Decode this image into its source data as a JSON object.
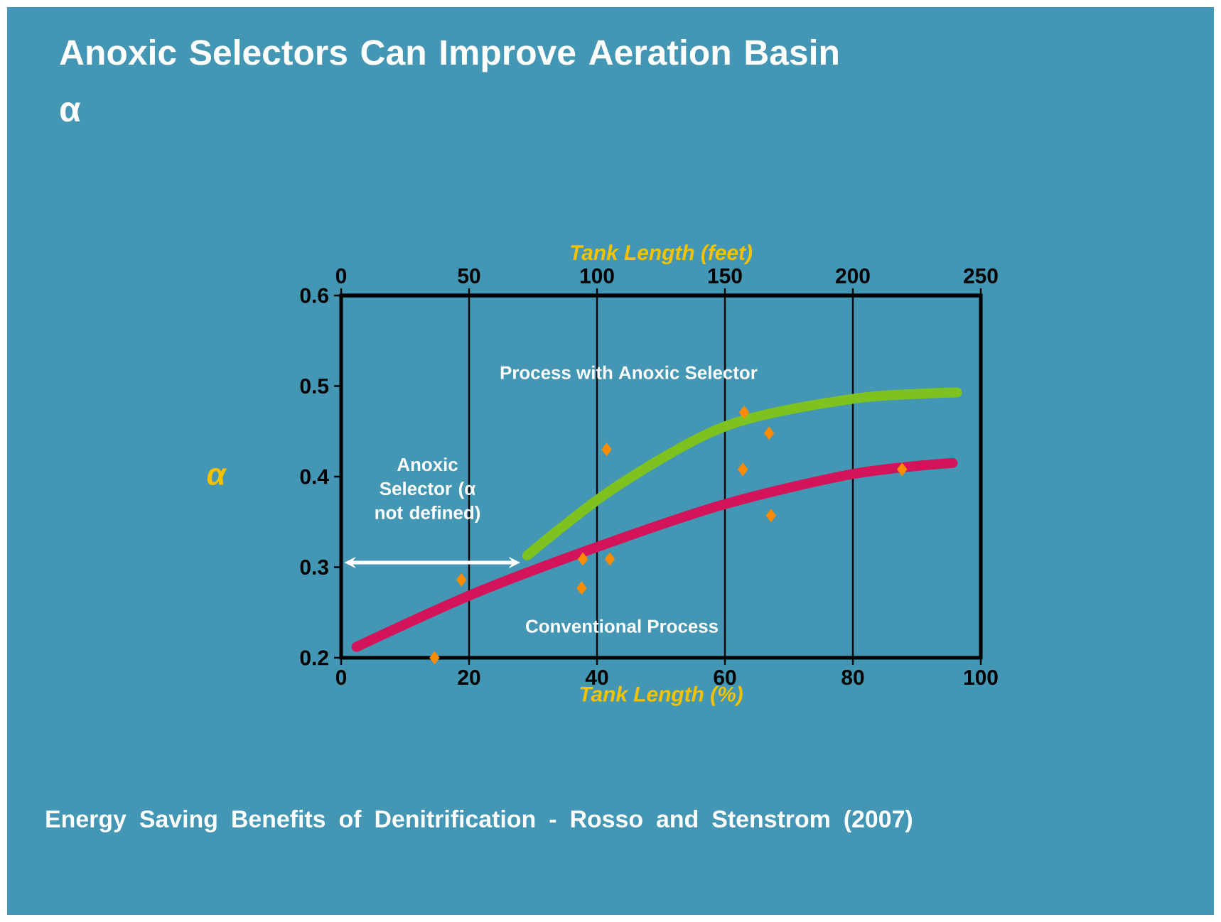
{
  "chart_data": {
    "type": "line",
    "title": "Anoxic Selectors Can Improve Aeration Basin α",
    "xlabel": "Tank Length  (%)",
    "x2label": "Tank Length  (feet)",
    "ylabel": "α",
    "xlim": [
      0,
      100
    ],
    "xticks": [
      0,
      20,
      40,
      60,
      80,
      100
    ],
    "x2lim": [
      0,
      250
    ],
    "x2ticks": [
      0,
      50,
      100,
      150,
      200,
      250
    ],
    "ylim": [
      0.2,
      0.6
    ],
    "yticks": [
      0.2,
      0.3,
      0.4,
      0.5,
      0.6
    ],
    "grid": "x",
    "series": [
      {
        "name": "Process with Anoxic Selector",
        "color": "#7dc21e",
        "x": [
          29.1,
          42.6,
          60.2,
          80.1,
          96.3
        ],
        "values": [
          0.313,
          0.387,
          0.456,
          0.486,
          0.493
        ]
      },
      {
        "name": "Conventional Process",
        "color": "#d4145a",
        "x": [
          2.4,
          20.5,
          40.3,
          60.2,
          80.1,
          95.6
        ],
        "values": [
          0.212,
          0.27,
          0.323,
          0.37,
          0.403,
          0.415
        ]
      },
      {
        "type": "scatter",
        "marker": "diamond",
        "color": "#ff8c00",
        "x": [
          37.8,
          41.5,
          63,
          66.9
        ],
        "values": [
          0.309,
          0.43,
          0.471,
          0.448
        ]
      },
      {
        "type": "scatter",
        "marker": "diamond",
        "color": "#ff8c00",
        "x": [
          14.6,
          18.8,
          37.6,
          42,
          62.8,
          67.2,
          87.7
        ],
        "values": [
          0.2,
          0.286,
          0.277,
          0.309,
          0.408,
          0.357,
          0.408
        ]
      }
    ],
    "annotations": [
      "Anoxic Selector (α not defined)",
      "Energy  Saving Benefits  of Denitrification - Rosso  and Stenstrom  (2007)"
    ]
  }
}
